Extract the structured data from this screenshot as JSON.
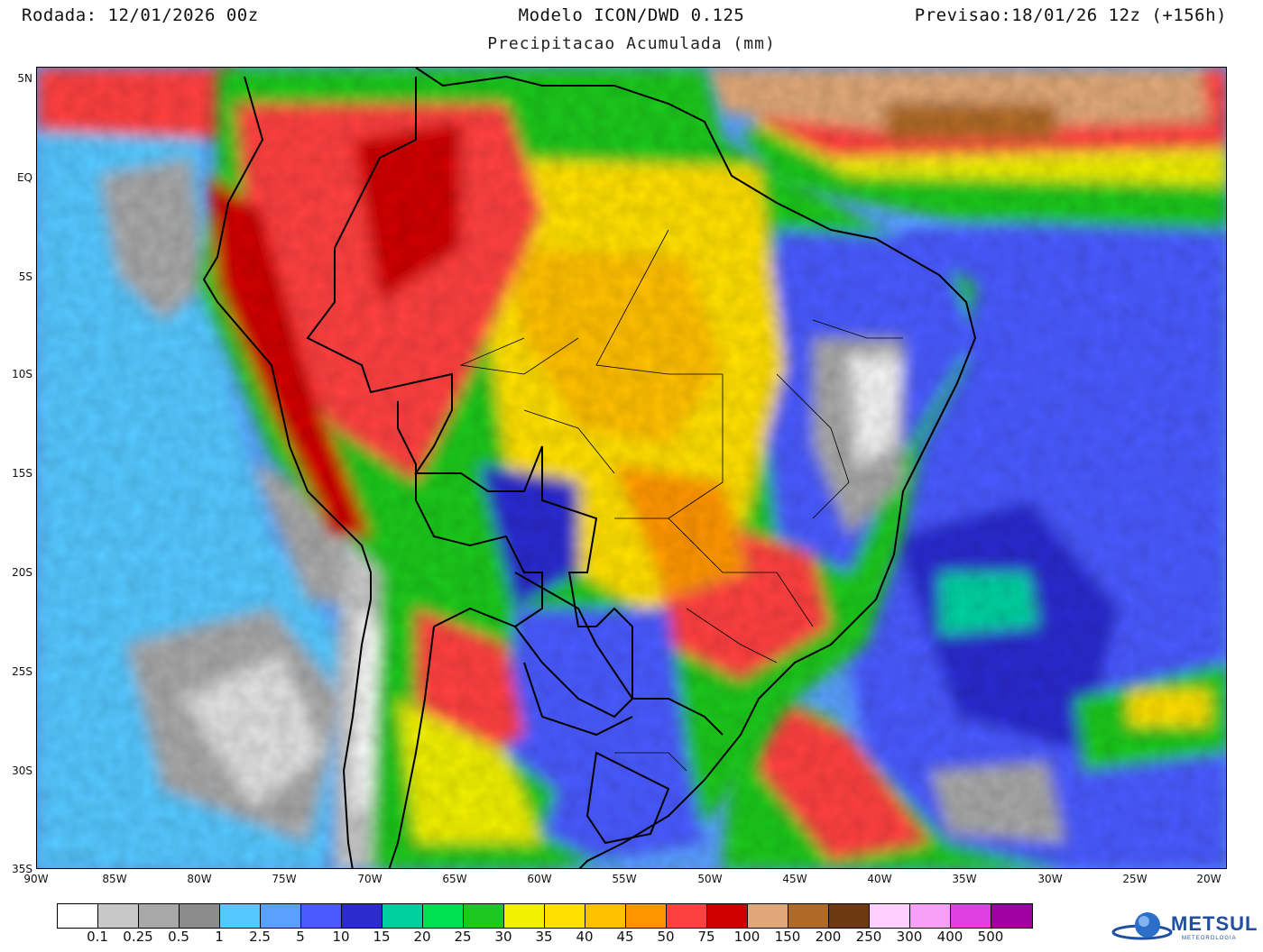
{
  "header": {
    "run": "Rodada: 12/01/2026 00z",
    "model": "Modelo ICON/DWD 0.125",
    "valid": "Previsao:18/01/26 12z (+156h)",
    "subtitle": "Precipitacao Acumulada (mm)"
  },
  "axes": {
    "lat_labels": [
      "5N",
      "EQ",
      "5S",
      "10S",
      "15S",
      "20S",
      "25S",
      "30S",
      "35S"
    ],
    "lon_labels": [
      "90W",
      "85W",
      "80W",
      "75W",
      "70W",
      "65W",
      "60W",
      "55W",
      "50W",
      "45W",
      "40W",
      "35W",
      "30W",
      "25W",
      "20W"
    ]
  },
  "legend": {
    "unit": "mm",
    "colors": [
      "#ffffff",
      "#c8c8c8",
      "#a8a8a8",
      "#8c8c8c",
      "#55c8ff",
      "#5aa0ff",
      "#4a5aff",
      "#2b2bd0",
      "#00d0a0",
      "#00e050",
      "#1ec81e",
      "#f0f000",
      "#ffe000",
      "#ffc000",
      "#ff9600",
      "#ff4040",
      "#d00000",
      "#e0a878",
      "#b06a28",
      "#6e3810",
      "#ffd0ff",
      "#f8a0f8",
      "#e040e0",
      "#a000a0"
    ],
    "labels": [
      "0.1",
      "0.25",
      "0.5",
      "1",
      "2.5",
      "5",
      "10",
      "15",
      "20",
      "25",
      "30",
      "35",
      "40",
      "45",
      "50",
      "75",
      "100",
      "150",
      "200",
      "250",
      "300",
      "400",
      "500"
    ]
  },
  "logo": {
    "text": "METSUL",
    "subtext": "METEOROLOGIA"
  }
}
